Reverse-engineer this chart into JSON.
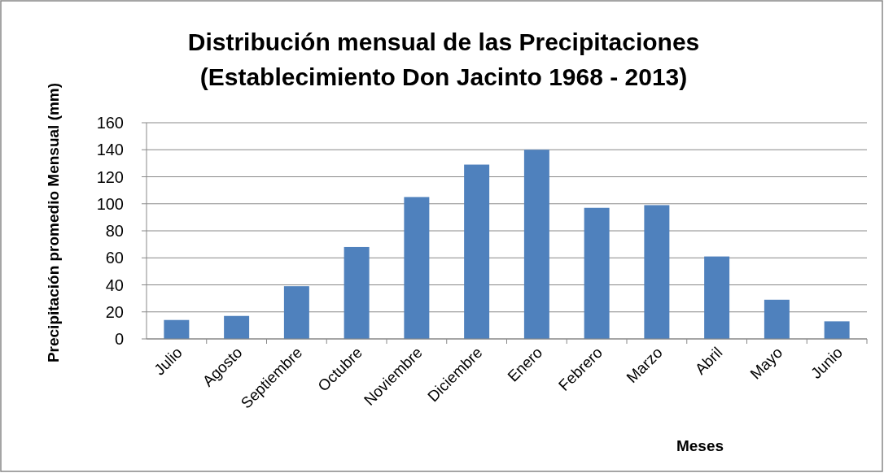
{
  "chart_data": {
    "type": "bar",
    "title": "Distribución mensual de las Precipitaciones\n(Establecimiento Don Jacinto 1968 - 2013)",
    "xlabel": "Meses",
    "ylabel": "Precipitación promedio Mensual (mm)",
    "categories": [
      "Julio",
      "Agosto",
      "Septiembre",
      "Octubre",
      "Noviembre",
      "Diciembre",
      "Enero",
      "Febrero",
      "Marzo",
      "Abril",
      "Mayo",
      "Junio"
    ],
    "values": [
      14,
      17,
      39,
      68,
      105,
      129,
      140,
      97,
      99,
      61,
      29,
      13
    ],
    "color": "#4f81bd",
    "ylim": [
      0,
      160
    ],
    "yticks": [
      0,
      20,
      40,
      60,
      80,
      100,
      120,
      140,
      160
    ],
    "grid": "y"
  }
}
